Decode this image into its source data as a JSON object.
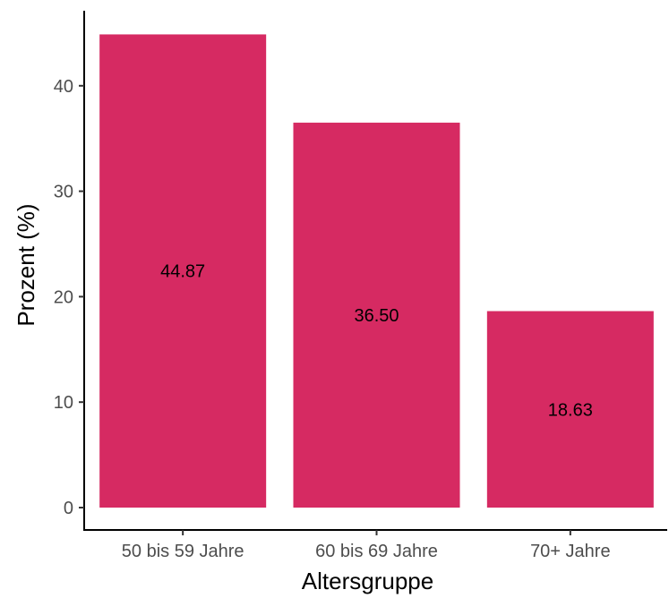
{
  "chart_data": {
    "type": "bar",
    "categories": [
      "50 bis 59 Jahre",
      "60 bis 69 Jahre",
      "70+ Jahre"
    ],
    "values": [
      44.87,
      36.5,
      18.63
    ],
    "data_labels": [
      "44.87",
      "36.50",
      "18.63"
    ],
    "xlabel": "Altersgruppe",
    "ylabel": "Prozent (%)",
    "ylim": [
      0,
      47
    ],
    "yticks": [
      0,
      10,
      20,
      30,
      40
    ],
    "grid": false,
    "colors": {
      "bar": "#d62a62",
      "axis": "#000000",
      "tick_text": "#4d4d4d"
    }
  }
}
